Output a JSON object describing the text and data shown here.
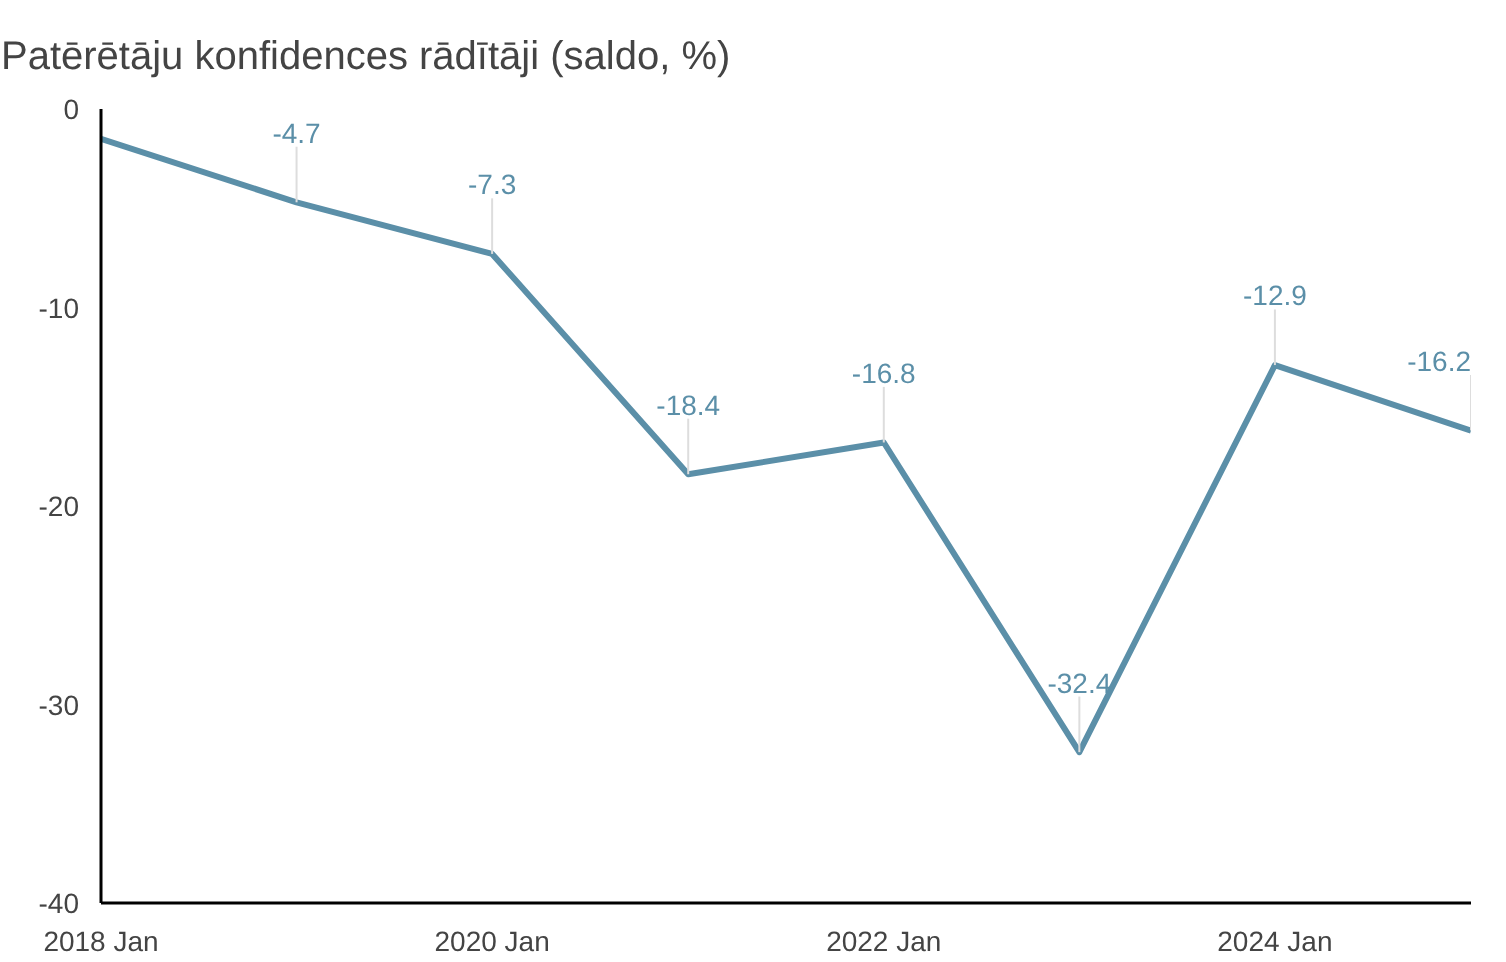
{
  "chart_data": {
    "type": "line",
    "title": "Patērētāju konfidences rādītāji (saldo, %)",
    "x": [
      "2018-01",
      "2019-01",
      "2020-01",
      "2021-01",
      "2022-01",
      "2023-01",
      "2024-01",
      "2025-01"
    ],
    "series": [
      {
        "color": "#5b8fa8",
        "values": [
          -1.5,
          -4.7,
          -7.3,
          -18.4,
          -16.8,
          -32.4,
          -12.9,
          -16.2
        ],
        "value_labels": [
          null,
          "-4.7",
          "-7.3",
          "-18.4",
          "-16.8",
          "-32.4",
          "-12.9",
          "-16.2"
        ]
      }
    ],
    "xlim": [
      "2018-01",
      "2025-01"
    ],
    "xticks": [
      {
        "value": "2018-01",
        "label": "2018 Jan"
      },
      {
        "value": "2020-01",
        "label": "2020 Jan"
      },
      {
        "value": "2022-01",
        "label": "2022 Jan"
      },
      {
        "value": "2024-01",
        "label": "2024 Jan"
      }
    ],
    "ylim": [
      -40,
      0
    ],
    "yticks": [
      -40,
      -30,
      -20,
      -10,
      0
    ],
    "grid": false,
    "marker": "none",
    "line_style": "solid"
  }
}
